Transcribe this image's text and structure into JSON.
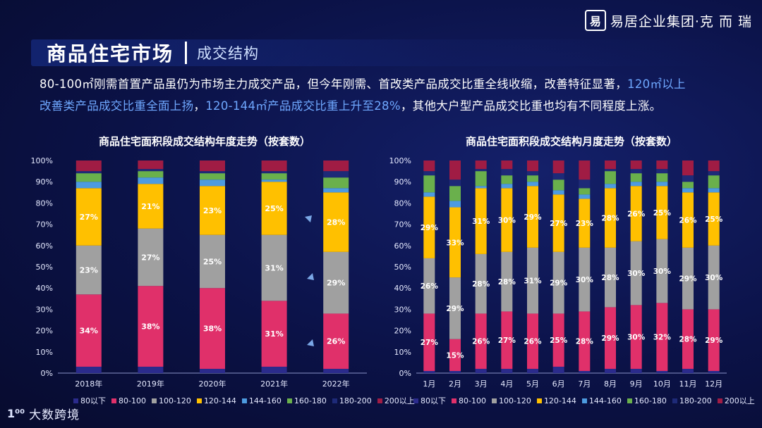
{
  "brand": {
    "logo_char": "易",
    "name": "易居企业集团·克 而 瑞"
  },
  "header": {
    "title": "商品住宅市场",
    "subtitle": "成交结构"
  },
  "description": {
    "line1_pre": "80-100㎡刚需首置产品虽仍为市场主力成交产品，但今年刚需、首改类产品成交比重全线收缩，改善特征显著，",
    "line1_hl": "120㎡以上",
    "line2_hl": "改善类产品成交比重全面上扬",
    "line2_mid": "，",
    "line2_hl2": "120-144㎡产品成交比重上升至28%",
    "line2_post": "，其他大户型产品成交比重也均有不同程度上涨。"
  },
  "footer": {
    "mark": "1⁰⁰",
    "text": "大数跨境"
  },
  "colors": {
    "80以下": "#2b2b8c",
    "80-100": "#e0306a",
    "100-120": "#a0a0a0",
    "120-144": "#ffc000",
    "144-160": "#4d9be0",
    "160-180": "#6ab04c",
    "180-200": "#1e2a78",
    "200以上": "#a01c44"
  },
  "chart_data": [
    {
      "type": "bar",
      "stacked": true,
      "title": "商品住宅面积段成交结构年度走势（按套数）",
      "categories": [
        "2018年",
        "2019年",
        "2020年",
        "2021年",
        "2022年"
      ],
      "yticks": [
        "0%",
        "10%",
        "20%",
        "30%",
        "40%",
        "50%",
        "60%",
        "70%",
        "80%",
        "90%",
        "100%"
      ],
      "ylim": [
        0,
        100
      ],
      "series": [
        {
          "name": "80以下",
          "values": [
            3,
            3,
            2,
            3,
            2
          ]
        },
        {
          "name": "80-100",
          "values": [
            34,
            38,
            38,
            31,
            26
          ]
        },
        {
          "name": "100-120",
          "values": [
            23,
            27,
            25,
            31,
            29
          ]
        },
        {
          "name": "120-144",
          "values": [
            27,
            21,
            23,
            25,
            28
          ]
        },
        {
          "name": "144-160",
          "values": [
            3,
            3,
            3,
            1,
            2
          ]
        },
        {
          "name": "160-180",
          "values": [
            4,
            3,
            3,
            3,
            5
          ]
        },
        {
          "name": "180-200",
          "values": [
            1,
            1,
            1,
            1,
            3
          ]
        },
        {
          "name": "200以上",
          "values": [
            5,
            4,
            5,
            5,
            5
          ]
        }
      ],
      "labels": [
        [
          null,
          "34%",
          "23%",
          "27%",
          null,
          null,
          null,
          null
        ],
        [
          null,
          "38%",
          "27%",
          "21%",
          null,
          null,
          null,
          null
        ],
        [
          null,
          "38%",
          "25%",
          "23%",
          null,
          null,
          null,
          null
        ],
        [
          null,
          "31%",
          "31%",
          "25%",
          null,
          null,
          null,
          null
        ],
        [
          null,
          "26%",
          "29%",
          "28%",
          null,
          null,
          null,
          null
        ]
      ]
    },
    {
      "type": "bar",
      "stacked": true,
      "title": "商品住宅面积段成交结构月度走势（按套数）",
      "categories": [
        "1月",
        "2月",
        "3月",
        "4月",
        "5月",
        "6月",
        "7月",
        "8月",
        "9月",
        "10月",
        "11月",
        "12月"
      ],
      "yticks": [
        "0%",
        "10%",
        "20%",
        "30%",
        "40%",
        "50%",
        "60%",
        "70%",
        "80%",
        "90%",
        "100%"
      ],
      "ylim": [
        0,
        100
      ],
      "series": [
        {
          "name": "80以下",
          "values": [
            1,
            1,
            2,
            2,
            2,
            3,
            1,
            2,
            2,
            1,
            2,
            1
          ]
        },
        {
          "name": "80-100",
          "values": [
            27,
            15,
            26,
            27,
            26,
            25,
            28,
            29,
            30,
            32,
            28,
            29
          ]
        },
        {
          "name": "100-120",
          "values": [
            26,
            29,
            28,
            28,
            31,
            29,
            30,
            28,
            30,
            30,
            29,
            30
          ]
        },
        {
          "name": "120-144",
          "values": [
            29,
            33,
            31,
            30,
            29,
            27,
            23,
            28,
            26,
            25,
            26,
            25
          ]
        },
        {
          "name": "144-160",
          "values": [
            2,
            3,
            1,
            2,
            2,
            2,
            2,
            2,
            2,
            2,
            2,
            2
          ]
        },
        {
          "name": "160-180",
          "values": [
            8,
            7,
            7,
            4,
            3,
            5,
            3,
            6,
            4,
            4,
            3,
            6
          ]
        },
        {
          "name": "180-200",
          "values": [
            2,
            3,
            1,
            3,
            2,
            3,
            4,
            1,
            2,
            2,
            3,
            2
          ]
        },
        {
          "name": "200以上",
          "values": [
            5,
            9,
            4,
            4,
            5,
            6,
            9,
            4,
            4,
            4,
            7,
            5
          ]
        }
      ],
      "labels": [
        [
          null,
          "27%",
          "26%",
          "29%",
          null,
          null,
          null,
          null
        ],
        [
          null,
          "15%",
          "29%",
          "33%",
          null,
          null,
          null,
          null
        ],
        [
          null,
          "26%",
          "28%",
          "31%",
          null,
          null,
          null,
          null
        ],
        [
          null,
          "27%",
          "28%",
          "30%",
          null,
          null,
          null,
          null
        ],
        [
          null,
          "26%",
          "31%",
          "29%",
          null,
          null,
          null,
          null
        ],
        [
          null,
          "25%",
          "29%",
          "27%",
          null,
          null,
          null,
          null
        ],
        [
          null,
          "28%",
          "30%",
          "23%",
          null,
          null,
          null,
          null
        ],
        [
          null,
          "29%",
          "28%",
          "28%",
          null,
          null,
          null,
          null
        ],
        [
          null,
          "30%",
          "30%",
          "26%",
          null,
          null,
          null,
          null
        ],
        [
          null,
          "32%",
          "30%",
          "25%",
          null,
          null,
          null,
          null
        ],
        [
          null,
          "28%",
          "29%",
          "26%",
          null,
          null,
          null,
          null
        ],
        [
          null,
          "29%",
          "30%",
          "25%",
          null,
          null,
          null,
          null
        ]
      ]
    }
  ],
  "legend": [
    "80以下",
    "80-100",
    "100-120",
    "120-144",
    "144-160",
    "160-180",
    "180-200",
    "200以上"
  ]
}
